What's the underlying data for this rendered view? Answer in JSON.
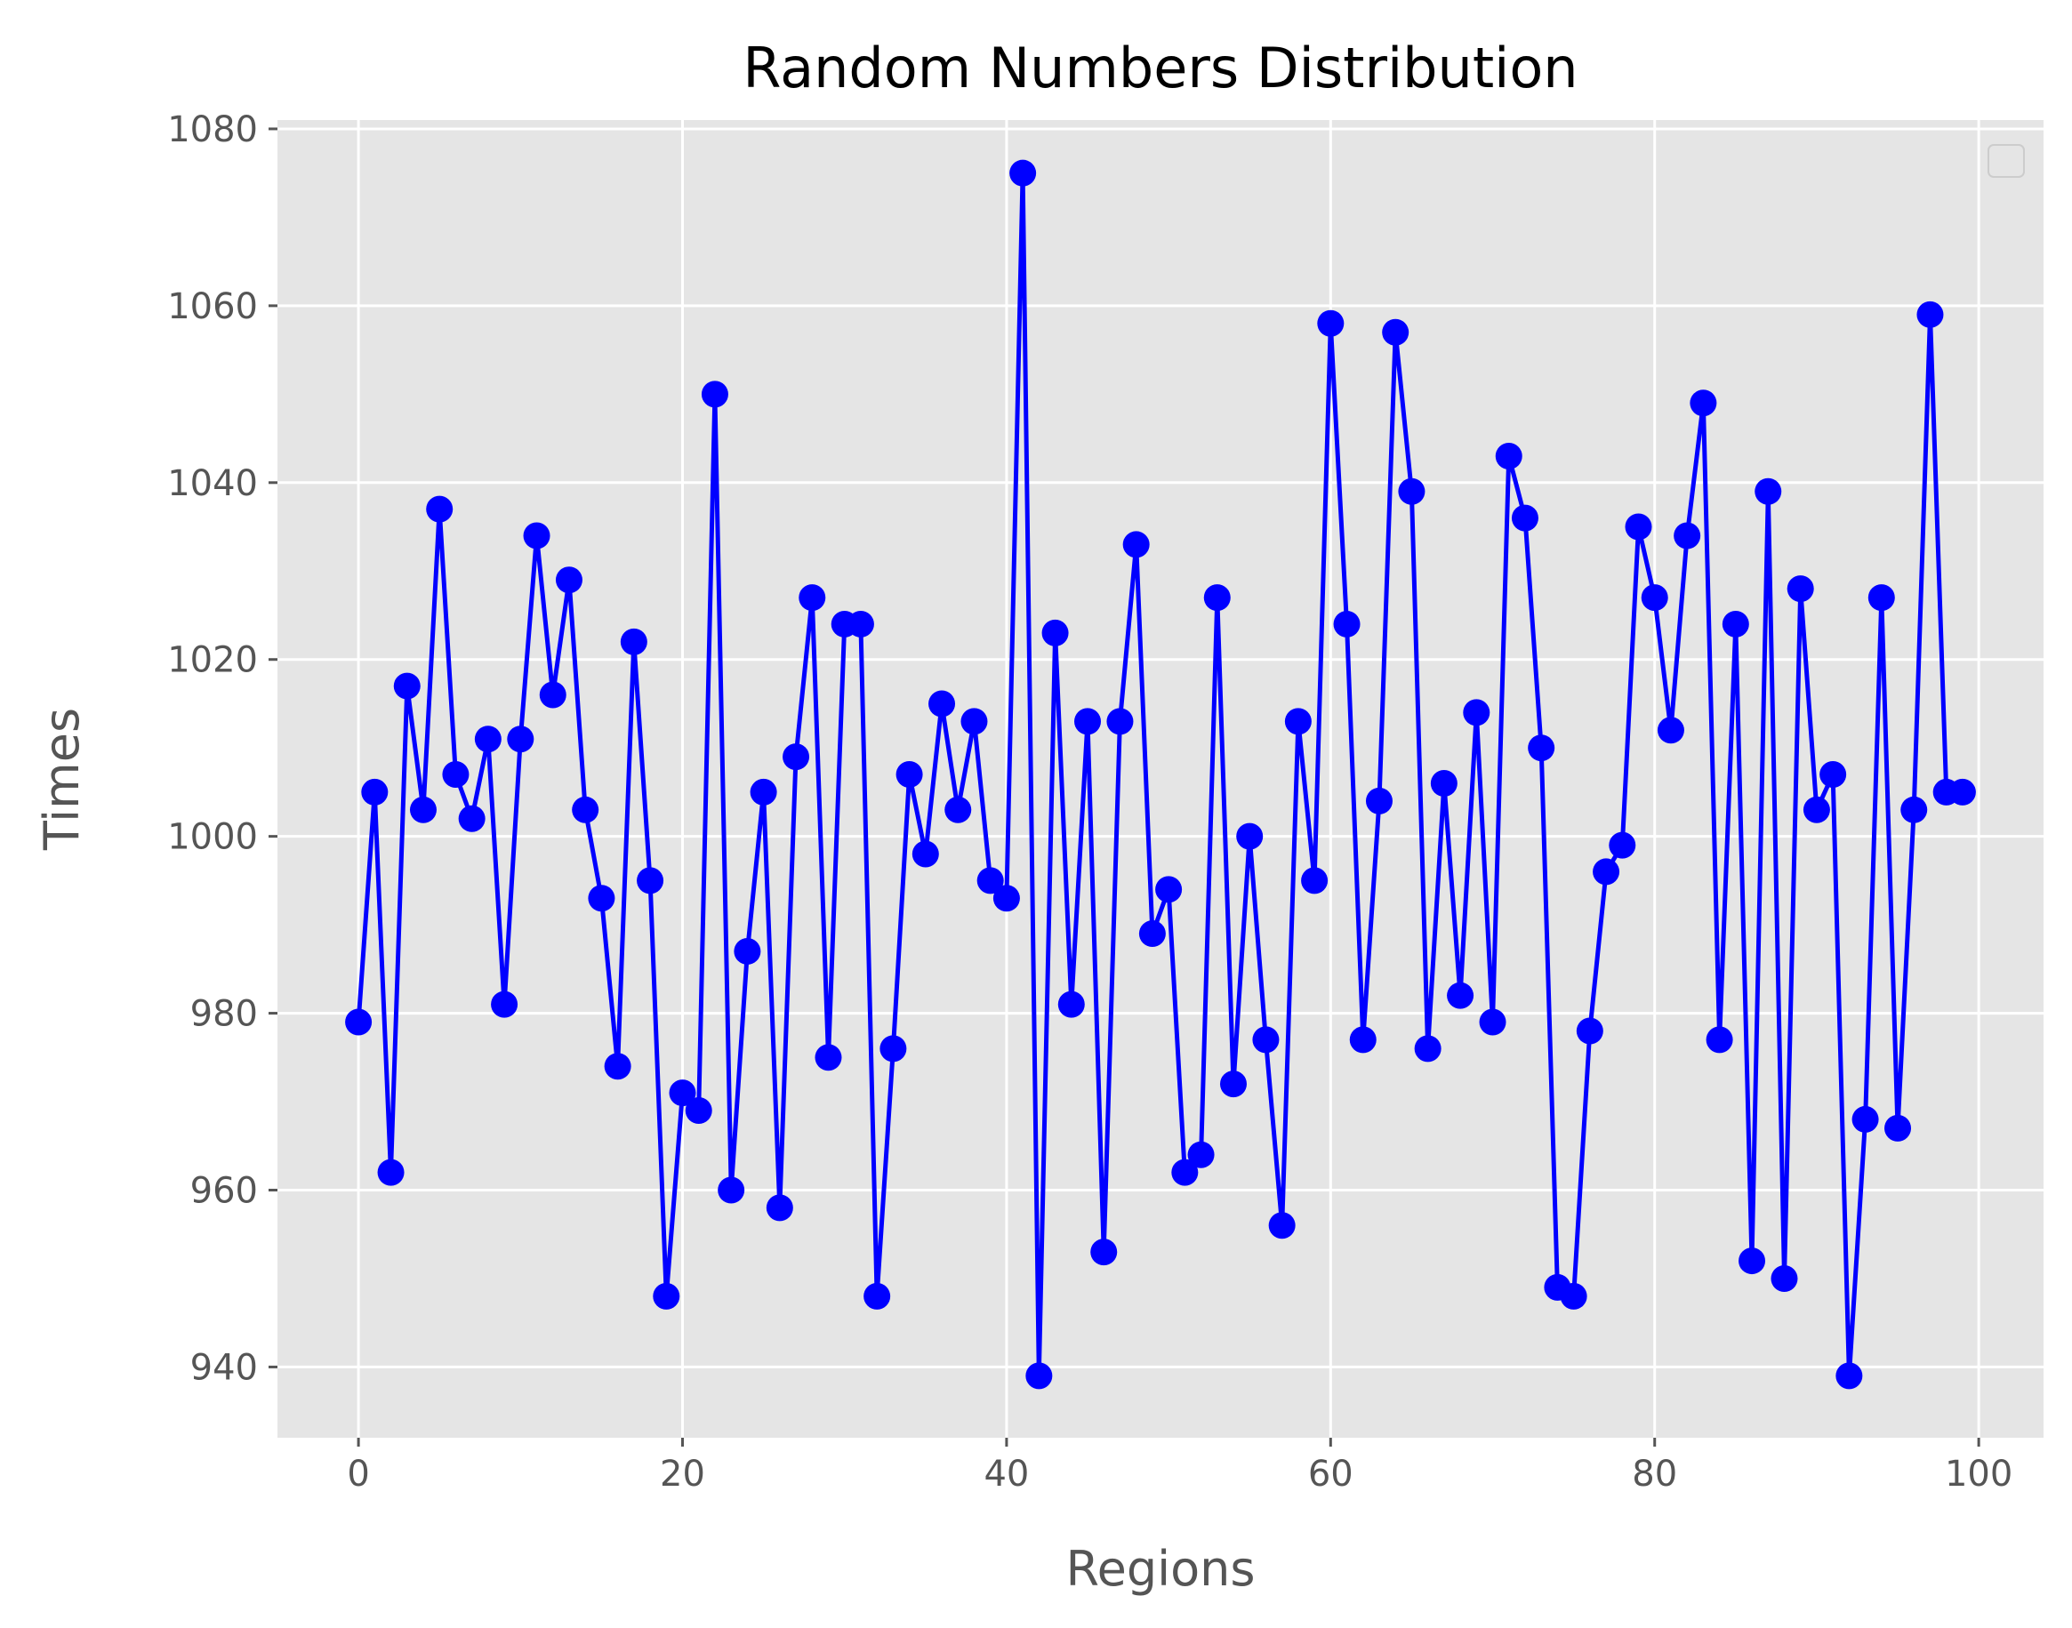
{
  "chart_data": {
    "type": "line",
    "title": "Random Numbers Distribution",
    "xlabel": "Regions",
    "ylabel": "Times",
    "xlim": [
      -5,
      104
    ],
    "ylim": [
      932,
      1081
    ],
    "x_ticks": [
      0,
      20,
      40,
      60,
      80,
      100
    ],
    "y_ticks": [
      940,
      960,
      980,
      1000,
      1020,
      1040,
      1060,
      1080
    ],
    "grid": true,
    "legend": "top-right (empty)",
    "style": "ggplot",
    "colors": {
      "series": "#0000ff",
      "plot_background": "#e5e5e5",
      "grid": "#ffffff",
      "tick_text": "#555555",
      "title_text": "#000000"
    },
    "series": [
      {
        "marker": "circle",
        "x": [
          0,
          1,
          2,
          3,
          4,
          5,
          6,
          7,
          8,
          9,
          10,
          11,
          12,
          13,
          14,
          15,
          16,
          17,
          18,
          19,
          20,
          21,
          22,
          23,
          24,
          25,
          26,
          27,
          28,
          29,
          30,
          31,
          32,
          33,
          34,
          35,
          36,
          37,
          38,
          39,
          40,
          41,
          42,
          43,
          44,
          45,
          46,
          47,
          48,
          49,
          50,
          51,
          52,
          53,
          54,
          55,
          56,
          57,
          58,
          59,
          60,
          61,
          62,
          63,
          64,
          65,
          66,
          67,
          68,
          69,
          70,
          71,
          72,
          73,
          74,
          75,
          76,
          77,
          78,
          79,
          80,
          81,
          82,
          83,
          84,
          85,
          86,
          87,
          88,
          89,
          90,
          91,
          92,
          93,
          94,
          95,
          96,
          97,
          98,
          99
        ],
        "y": [
          979,
          1005,
          962,
          1017,
          1003,
          1037,
          1007,
          1002,
          1011,
          981,
          1011,
          1034,
          1016,
          1029,
          1003,
          993,
          974,
          1022,
          995,
          948,
          971,
          969,
          1050,
          960,
          987,
          1005,
          958,
          1009,
          1027,
          975,
          1024,
          1024,
          948,
          976,
          1007,
          998,
          1015,
          1003,
          1013,
          995,
          993,
          1075,
          939,
          1023,
          981,
          1013,
          953,
          1013,
          1033,
          989,
          994,
          962,
          964,
          1027,
          972,
          1000,
          977,
          956,
          1013,
          995,
          1058,
          1024,
          977,
          1004,
          1057,
          1039,
          976,
          1006,
          982,
          1014,
          979,
          1043,
          1036,
          1010,
          949,
          948,
          978,
          996,
          999,
          1035,
          1027,
          1012,
          1034,
          1049,
          977,
          1024,
          952,
          1039,
          950,
          1028,
          1003,
          1007,
          939,
          968,
          1027,
          967,
          1003,
          1059,
          1005,
          1005
        ]
      }
    ]
  }
}
